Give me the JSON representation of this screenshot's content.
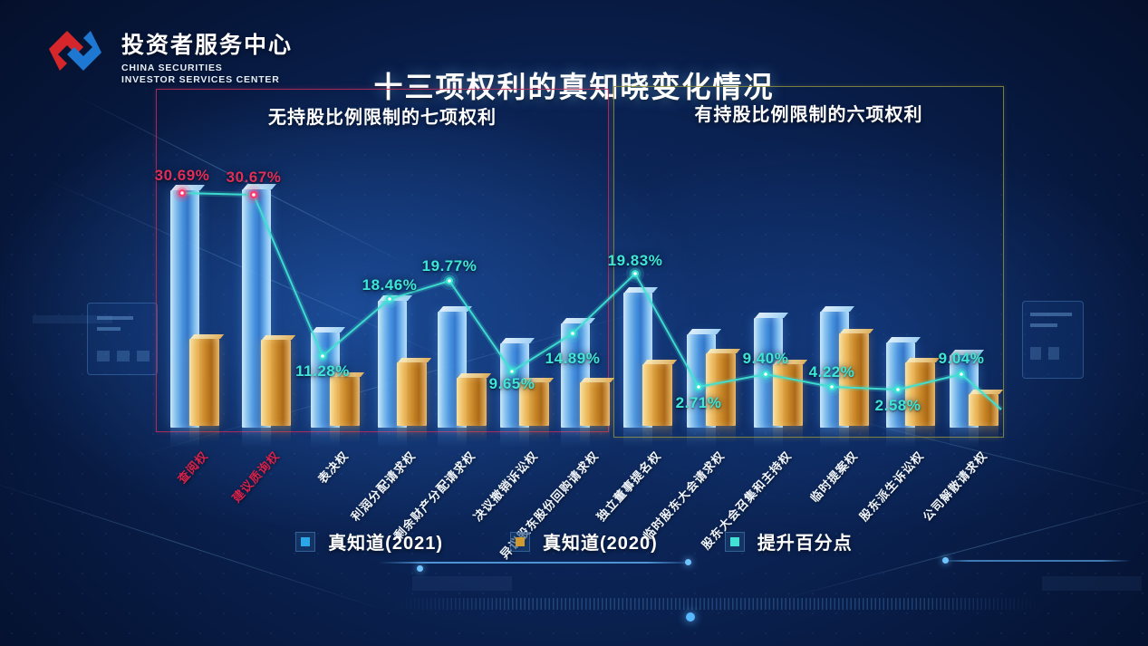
{
  "header": {
    "org_cn": "投资者服务中心",
    "org_en1": "CHINA SECURITIES",
    "org_en2": "INVESTOR SERVICES CENTER",
    "logo_colors": {
      "red": "#d5262b",
      "blue": "#1e78d2"
    }
  },
  "title": "十三项权利的真知晓变化情况",
  "sections": [
    {
      "label": "无持股比例限制的七项权利",
      "border_color": "#be2d5a",
      "rights_count": 7
    },
    {
      "label": "有持股比例限制的六项权利",
      "border_color": "#96963c",
      "rights_count": 6
    }
  ],
  "legend": [
    {
      "label": "真知道(2021)",
      "color": "#2ba6e6"
    },
    {
      "label": "真知道(2020)",
      "color": "#cf9a30"
    },
    {
      "label": "提升百分点",
      "color": "#45e0d5"
    }
  ],
  "colors": {
    "line": "#3fe0d2",
    "value_label_cyan": "#3ee6d6",
    "value_label_red": "#e02e58",
    "category_red": "#d6224c",
    "category_white": "#f0f6ff"
  },
  "chart_data": {
    "type": "bar+line",
    "section_split_index": 7,
    "categories": [
      "查阅权",
      "建议质询权",
      "表决权",
      "利润分配请求权",
      "剩余财产分配请求权",
      "决议撤销诉讼权",
      "异议股东股份回购请求权",
      "独立董事提名权",
      "临时股东大会请求权",
      "股东大会召集和主持权",
      "临时提案权",
      "股东派生诉讼权",
      "公司解散请求权"
    ],
    "category_label_colors": [
      "#d6224c",
      "#d6224c",
      "#f0f6ff",
      "#f0f6ff",
      "#f0f6ff",
      "#f0f6ff",
      "#f0f6ff",
      "#f0f6ff",
      "#f0f6ff",
      "#f0f6ff",
      "#f0f6ff",
      "#f0f6ff",
      "#f0f6ff"
    ],
    "series": [
      {
        "name": "真知道(2021)",
        "type": "bar",
        "values_estimated": true,
        "values": [
          47.2,
          47.4,
          18.9,
          25.2,
          23.1,
          16.8,
          20.7,
          26.8,
          18.6,
          21.8,
          23.1,
          16.9,
          14.4
        ]
      },
      {
        "name": "真知道(2020)",
        "type": "bar",
        "values_estimated": true,
        "values": [
          17.3,
          17.1,
          9.7,
          12.6,
          9.5,
          8.6,
          8.6,
          12.3,
          14.4,
          12.3,
          18.4,
          12.6,
          6.3
        ]
      },
      {
        "name": "提升百分点",
        "type": "line",
        "values": [
          30.69,
          30.67,
          11.28,
          18.46,
          19.77,
          9.65,
          14.89,
          19.83,
          2.71,
          9.4,
          4.22,
          2.58,
          9.04
        ],
        "labels": [
          "30.69%",
          "30.67%",
          "11.28%",
          "18.46%",
          "19.77%",
          "9.65%",
          "14.89%",
          "19.83%",
          "2.71%",
          "9.40%",
          "4.22%",
          "2.58%",
          "9.04%"
        ],
        "label_colors": [
          "#e02e58",
          "#e02e58",
          "#3ee6d6",
          "#3ee6d6",
          "#3ee6d6",
          "#3ee6d6",
          "#3ee6d6",
          "#3ee6d6",
          "#3ee6d6",
          "#3ee6d6",
          "#3ee6d6",
          "#3ee6d6",
          "#3ee6d6"
        ],
        "marker_colors": [
          "#ff3a6e",
          "#ff3a6e",
          "#3ee4d6",
          "#3ee4d6",
          "#3ee4d6",
          "#3ee4d6",
          "#3ee4d6",
          "#3ee4d6",
          "#3ee4d6",
          "#3ee4d6",
          "#3ee4d6",
          "#3ee4d6",
          "#3ee4d6"
        ]
      }
    ],
    "grid": false,
    "legend_position": "bottom"
  }
}
